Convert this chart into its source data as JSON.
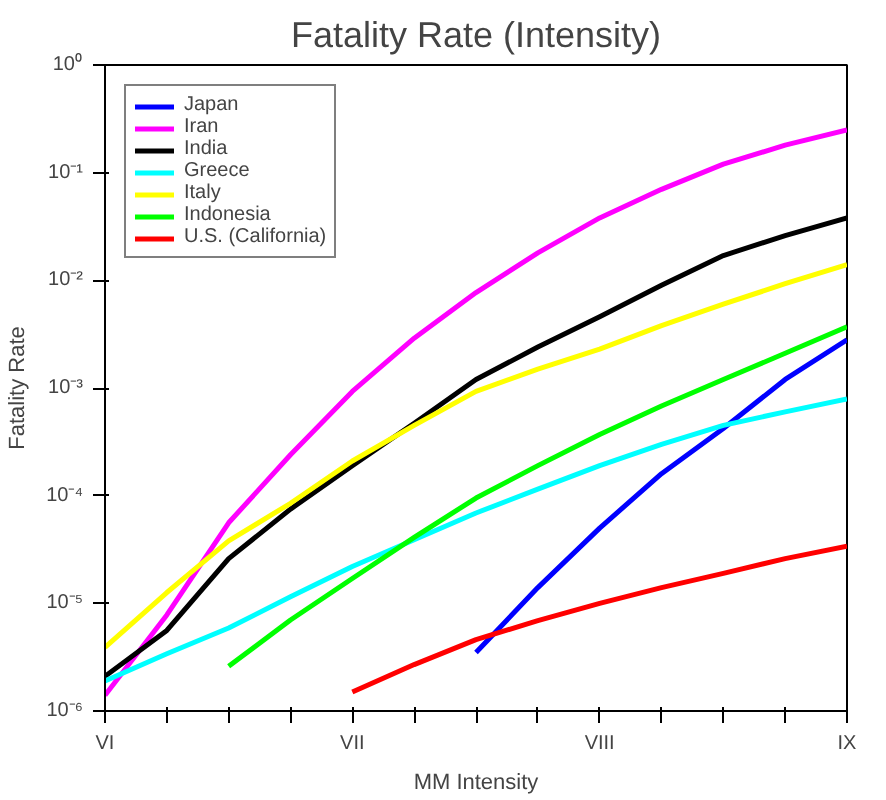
{
  "chart_data": {
    "type": "line",
    "title": "Fatality Rate (Intensity)",
    "xlabel": "MM Intensity",
    "ylabel": "Fatality Rate",
    "log": "y",
    "grid": false,
    "legend": "top left",
    "line_style": "solid",
    "marker": "none",
    "categories": [
      "VI",
      null,
      null,
      null,
      "VII",
      null,
      null,
      null,
      "VIII",
      null,
      null,
      null,
      "IX"
    ],
    "ylim": [
      1e-06,
      1
    ],
    "yticks": [
      {
        "value": 1e-06,
        "label": "10⁻⁶"
      },
      {
        "value": 1e-05,
        "label": "10⁻⁵"
      },
      {
        "value": 0.0001,
        "label": "10⁻⁴"
      },
      {
        "value": 0.001,
        "label": "10⁻³"
      },
      {
        "value": 0.01,
        "label": "10⁻²"
      },
      {
        "value": 0.1,
        "label": "10⁻¹"
      },
      {
        "value": 1,
        "label": "10⁰"
      }
    ],
    "series": [
      {
        "name": "Japan",
        "color": "#0000ff",
        "values": [
          null,
          null,
          null,
          null,
          null,
          null,
          3.5e-06,
          1.4e-05,
          5e-05,
          0.00016,
          0.00042,
          0.0012,
          0.0028
        ]
      },
      {
        "name": "Iran",
        "color": "#ff00ff",
        "values": [
          1.4e-06,
          7.8e-06,
          5.6e-05,
          0.00024,
          0.00093,
          0.0029,
          0.0077,
          0.018,
          0.038,
          0.07,
          0.12,
          0.18,
          0.25
        ]
      },
      {
        "name": "India",
        "color": "#000000",
        "values": [
          2.1e-06,
          5.6e-06,
          2.6e-05,
          7.5e-05,
          0.00019,
          0.00047,
          0.0012,
          0.0024,
          0.0046,
          0.009,
          0.017,
          0.026,
          0.038
        ]
      },
      {
        "name": "Greece",
        "color": "#00ffff",
        "values": [
          1.9e-06,
          3.4e-06,
          5.9e-06,
          1.15e-05,
          2.2e-05,
          3.9e-05,
          6.9e-05,
          0.000115,
          0.00019,
          0.0003,
          0.00045,
          0.0006,
          0.00079
        ]
      },
      {
        "name": "Italy",
        "color": "#ffff00",
        "values": [
          3.9e-06,
          1.26e-05,
          3.8e-05,
          8.5e-05,
          0.00021,
          0.00045,
          0.00093,
          0.0015,
          0.0023,
          0.0038,
          0.006,
          0.0093,
          0.014
        ]
      },
      {
        "name": "Indonesia",
        "color": "#00ff00",
        "values": [
          null,
          null,
          2.6e-06,
          7e-06,
          1.7e-05,
          4.1e-05,
          9.5e-05,
          0.00019,
          0.00037,
          0.00068,
          0.0012,
          0.0021,
          0.0037
        ]
      },
      {
        "name": "U.S. (California)",
        "color": "#ff0000",
        "values": [
          null,
          null,
          null,
          null,
          1.5e-06,
          2.7e-06,
          4.6e-06,
          6.9e-06,
          1e-05,
          1.4e-05,
          1.9e-05,
          2.6e-05,
          3.4e-05
        ]
      }
    ]
  }
}
